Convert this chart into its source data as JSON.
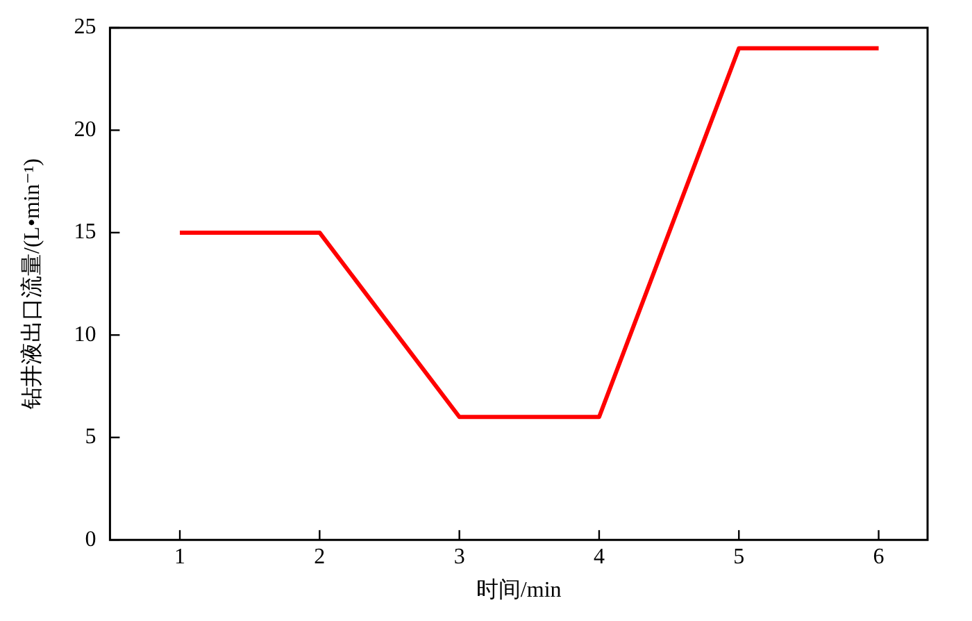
{
  "chart_data": {
    "type": "line",
    "xlabel": "时间/min",
    "ylabel": "钻井液出口流量/(L•min⁻¹)",
    "x": [
      1,
      2,
      3,
      4,
      5,
      6
    ],
    "series": [
      {
        "color": "#ff0000",
        "values": [
          15,
          15,
          6,
          6,
          24,
          24
        ]
      }
    ],
    "xlim": [
      0.5,
      6.35
    ],
    "xticks": [
      1,
      2,
      3,
      4,
      5,
      6
    ],
    "ylim": [
      0,
      25
    ],
    "yticks": [
      0,
      5,
      10,
      15,
      20,
      25
    ],
    "grid": false,
    "legend": false,
    "marker": "none",
    "line_style": "solid"
  }
}
